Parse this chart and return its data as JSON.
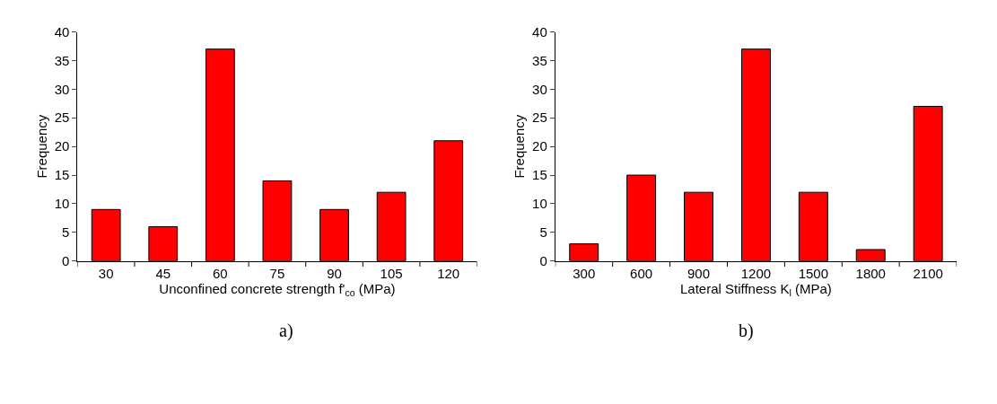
{
  "chart_data": [
    {
      "type": "bar",
      "xlabel": "Unconfined concrete strength f'$_{co}$ (MPa)",
      "ylabel": "Frequency",
      "categories": [
        "30",
        "45",
        "60",
        "75",
        "90",
        "105",
        "120"
      ],
      "values": [
        9,
        6,
        37,
        14,
        9,
        12,
        21
      ],
      "color": "#ff0000",
      "ylim": [
        0,
        40
      ],
      "yticks": [
        0,
        5,
        10,
        15,
        20,
        25,
        30,
        35,
        40
      ],
      "annotations": [
        "a)"
      ]
    },
    {
      "type": "bar",
      "xlabel": "Lateral Stiffness K$_{l}$ (MPa)",
      "ylabel": "Frequency",
      "categories": [
        "300",
        "600",
        "900",
        "1200",
        "1500",
        "1800",
        "2100"
      ],
      "values": [
        3,
        15,
        12,
        37,
        12,
        2,
        27
      ],
      "color": "#ff0000",
      "ylim": [
        0,
        40
      ],
      "yticks": [
        0,
        5,
        10,
        15,
        20,
        25,
        30,
        35,
        40
      ],
      "annotations": [
        "b)"
      ]
    }
  ]
}
